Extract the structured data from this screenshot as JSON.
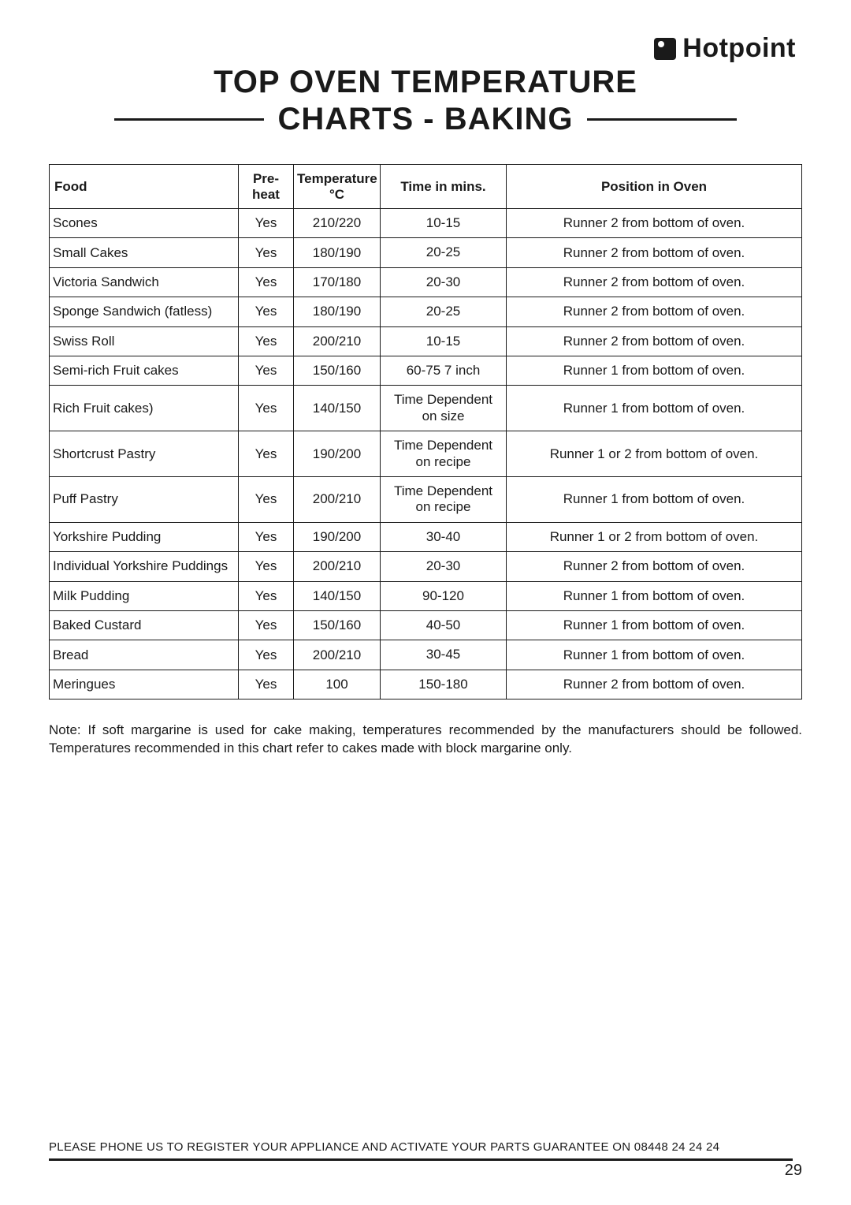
{
  "brand": {
    "name": "Hotpoint"
  },
  "title": {
    "line1": "TOP OVEN TEMPERATURE",
    "line2": "CHARTS - BAKING"
  },
  "columns": {
    "food": "Food",
    "preheat": "Pre-heat",
    "temp": "Temperature °C",
    "time": "Time in mins.",
    "position": "Position in Oven"
  },
  "rows": [
    {
      "food": "Scones",
      "preheat": "Yes",
      "temp": "210/220",
      "time": "10-15",
      "position": "Runner 2 from bottom of oven.",
      "tall": false
    },
    {
      "food": "Small Cakes",
      "preheat": "Yes",
      "temp": "180/190",
      "time": "20-25",
      "position": "Runner 2 from bottom of oven.",
      "tall": false
    },
    {
      "food": "Victoria Sandwich",
      "preheat": "Yes",
      "temp": "170/180",
      "time": "20-30",
      "position": "Runner 2 from bottom of oven.",
      "tall": false
    },
    {
      "food": "Sponge Sandwich (fatless)",
      "preheat": "Yes",
      "temp": "180/190",
      "time": "20-25",
      "position": "Runner 2 from bottom of oven.",
      "tall": false
    },
    {
      "food": "Swiss Roll",
      "preheat": "Yes",
      "temp": "200/210",
      "time": "10-15",
      "position": "Runner 2 from bottom of oven.",
      "tall": false
    },
    {
      "food": "Semi-rich Fruit cakes",
      "preheat": "Yes",
      "temp": "150/160",
      "time": "60-75   7 inch",
      "position": "Runner 1 from bottom of oven.",
      "tall": false
    },
    {
      "food": "Rich Fruit cakes)",
      "preheat": "Yes",
      "temp": "140/150",
      "time": "Time Dependent\non size",
      "position": "Runner 1 from bottom of oven.",
      "tall": true
    },
    {
      "food": "Shortcrust Pastry",
      "preheat": "Yes",
      "temp": "190/200",
      "time": "Time Dependent\non recipe",
      "position": "Runner 1 or 2 from bottom of oven.",
      "tall": true
    },
    {
      "food": "Puff Pastry",
      "preheat": "Yes",
      "temp": "200/210",
      "time": "Time Dependent\non recipe",
      "position": "Runner 1 from bottom of oven.",
      "tall": true
    },
    {
      "food": "Yorkshire Pudding",
      "preheat": "Yes",
      "temp": "190/200",
      "time": "30-40",
      "position": "Runner 1 or 2 from bottom of oven.",
      "tall": false
    },
    {
      "food": "Individual Yorkshire Puddings",
      "preheat": "Yes",
      "temp": "200/210",
      "time": "20-30",
      "position": "Runner 2 from bottom of oven.",
      "tall": false
    },
    {
      "food": "Milk Pudding",
      "preheat": "Yes",
      "temp": "140/150",
      "time": "90-120",
      "position": "Runner 1 from bottom of oven.",
      "tall": false
    },
    {
      "food": "Baked Custard",
      "preheat": "Yes",
      "temp": "150/160",
      "time": "40-50",
      "position": "Runner 1 from bottom of oven.",
      "tall": false
    },
    {
      "food": "Bread",
      "preheat": "Yes",
      "temp": "200/210",
      "time": "30-45",
      "position": "Runner 1 from bottom of oven.",
      "tall": false
    },
    {
      "food": "Meringues",
      "preheat": "Yes",
      "temp": "100",
      "time": "150-180",
      "position": "Runner 2 from bottom of oven.",
      "tall": false
    }
  ],
  "note": "Note: If soft margarine is used for cake making, temperatures recommended by the manufacturers should be followed. Temperatures recommended in this chart refer to cakes made with block margarine only.",
  "footer": {
    "text": "PLEASE PHONE US TO REGISTER YOUR APPLIANCE  AND ACTIVATE YOUR PARTS GUARANTEE ON 08448 24 24 24",
    "page": "29"
  },
  "style": {
    "page_bg": "#ffffff",
    "text_color": "#1a1a1a",
    "border_color": "#1a1a1a",
    "title_fontsize": 40,
    "body_fontsize": 17,
    "footer_fontsize": 15,
    "brand_fontsize": 34
  }
}
